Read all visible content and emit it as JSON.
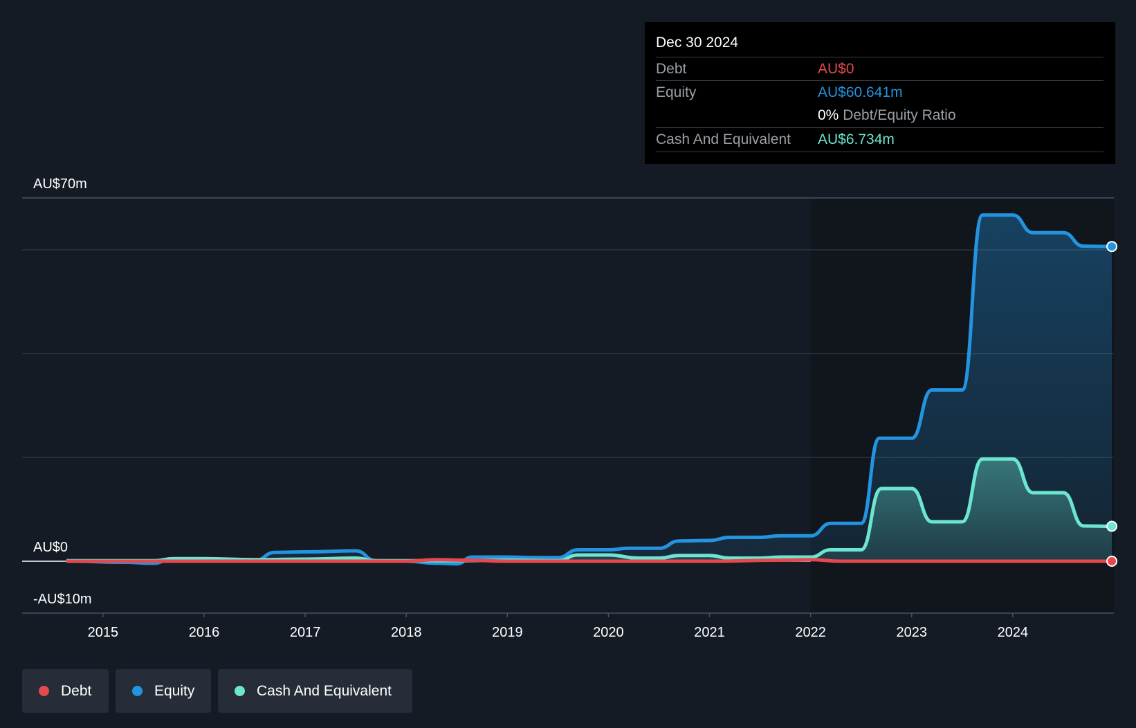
{
  "colors": {
    "background": "#151b24",
    "plot_bg": "#11151c",
    "debt": "#e5484d",
    "equity": "#2394df",
    "cash": "#6ce5d1",
    "grid": "#2e3440",
    "text": "#ffffff",
    "muted": "#9aa0a6"
  },
  "tooltip": {
    "date": "Dec 30 2024",
    "debt_label": "Debt",
    "debt_value": "AU$0",
    "equity_label": "Equity",
    "equity_value": "AU$60.641m",
    "ratio_value": "0%",
    "ratio_label": "Debt/Equity Ratio",
    "cash_label": "Cash And Equivalent",
    "cash_value": "AU$6.734m"
  },
  "legend": [
    {
      "label": "Debt",
      "color_key": "debt"
    },
    {
      "label": "Equity",
      "color_key": "equity"
    },
    {
      "label": "Cash And Equivalent",
      "color_key": "cash"
    }
  ],
  "chart_data": {
    "type": "line",
    "y_unit": "AU$ millions",
    "ylim": [
      -10,
      70
    ],
    "y_tick_labels": [
      {
        "value": 70,
        "label": "AU$70m"
      },
      {
        "value": 0,
        "label": "AU$0"
      },
      {
        "value": -10,
        "label": "-AU$10m"
      }
    ],
    "y_gridlines": [
      70,
      60,
      40,
      20,
      0,
      -10
    ],
    "xlim": [
      2014.2,
      2025.0
    ],
    "x_ticks": [
      {
        "value": 2015,
        "label": "2015"
      },
      {
        "value": 2016,
        "label": "2016"
      },
      {
        "value": 2017,
        "label": "2017"
      },
      {
        "value": 2018,
        "label": "2018"
      },
      {
        "value": 2019,
        "label": "2019"
      },
      {
        "value": 2020,
        "label": "2020"
      },
      {
        "value": 2021,
        "label": "2021"
      },
      {
        "value": 2022,
        "label": "2022"
      },
      {
        "value": 2023,
        "label": "2023"
      },
      {
        "value": 2024,
        "label": "2024"
      }
    ],
    "forecast_start": 2022.0,
    "series": [
      {
        "name": "Equity",
        "color_key": "equity",
        "fill": true,
        "points": [
          [
            2014.65,
            0.0
          ],
          [
            2015.2,
            -0.2
          ],
          [
            2015.5,
            -0.4
          ],
          [
            2015.65,
            0.2
          ],
          [
            2016.0,
            0.3
          ],
          [
            2016.5,
            0.1
          ],
          [
            2016.7,
            1.7
          ],
          [
            2017.0,
            1.8
          ],
          [
            2017.5,
            2.0
          ],
          [
            2017.7,
            0.1
          ],
          [
            2018.0,
            0.0
          ],
          [
            2018.3,
            -0.4
          ],
          [
            2018.5,
            -0.5
          ],
          [
            2018.65,
            0.8
          ],
          [
            2019.0,
            0.8
          ],
          [
            2019.3,
            0.7
          ],
          [
            2019.5,
            0.7
          ],
          [
            2019.7,
            2.2
          ],
          [
            2020.0,
            2.2
          ],
          [
            2020.2,
            2.5
          ],
          [
            2020.5,
            2.5
          ],
          [
            2020.7,
            3.9
          ],
          [
            2021.0,
            4.0
          ],
          [
            2021.2,
            4.6
          ],
          [
            2021.5,
            4.6
          ],
          [
            2021.7,
            4.9
          ],
          [
            2022.0,
            4.9
          ],
          [
            2022.2,
            7.3
          ],
          [
            2022.5,
            7.3
          ],
          [
            2022.68,
            23.7
          ],
          [
            2023.0,
            23.7
          ],
          [
            2023.2,
            33.0
          ],
          [
            2023.5,
            33.0
          ],
          [
            2023.7,
            66.7
          ],
          [
            2024.0,
            66.7
          ],
          [
            2024.2,
            63.3
          ],
          [
            2024.5,
            63.3
          ],
          [
            2024.7,
            60.7
          ],
          [
            2024.98,
            60.641
          ]
        ]
      },
      {
        "name": "Cash And Equivalent",
        "color_key": "cash",
        "fill": true,
        "points": [
          [
            2014.65,
            0.1
          ],
          [
            2015.5,
            0.1
          ],
          [
            2015.7,
            0.5
          ],
          [
            2016.0,
            0.5
          ],
          [
            2016.5,
            0.3
          ],
          [
            2017.0,
            0.4
          ],
          [
            2017.5,
            0.6
          ],
          [
            2017.7,
            0.1
          ],
          [
            2018.5,
            0.1
          ],
          [
            2019.0,
            0.2
          ],
          [
            2019.5,
            0.1
          ],
          [
            2019.7,
            1.2
          ],
          [
            2020.0,
            1.2
          ],
          [
            2020.3,
            0.6
          ],
          [
            2020.5,
            0.6
          ],
          [
            2020.7,
            1.1
          ],
          [
            2021.0,
            1.1
          ],
          [
            2021.2,
            0.6
          ],
          [
            2021.5,
            0.6
          ],
          [
            2021.7,
            0.8
          ],
          [
            2022.0,
            0.8
          ],
          [
            2022.2,
            2.2
          ],
          [
            2022.5,
            2.2
          ],
          [
            2022.7,
            14.0
          ],
          [
            2023.0,
            14.0
          ],
          [
            2023.2,
            7.6
          ],
          [
            2023.5,
            7.6
          ],
          [
            2023.7,
            19.7
          ],
          [
            2024.0,
            19.7
          ],
          [
            2024.2,
            13.2
          ],
          [
            2024.5,
            13.2
          ],
          [
            2024.7,
            6.8
          ],
          [
            2024.98,
            6.734
          ]
        ]
      },
      {
        "name": "Debt",
        "color_key": "debt",
        "fill": false,
        "points": [
          [
            2014.65,
            0.0
          ],
          [
            2017.0,
            0.0
          ],
          [
            2017.7,
            0.0
          ],
          [
            2018.0,
            0.0
          ],
          [
            2018.3,
            0.3
          ],
          [
            2018.6,
            0.2
          ],
          [
            2019.0,
            0.0
          ],
          [
            2020.0,
            0.0
          ],
          [
            2021.0,
            0.0
          ],
          [
            2021.7,
            0.2
          ],
          [
            2022.0,
            0.3
          ],
          [
            2022.3,
            0.0
          ],
          [
            2024.98,
            0.0
          ]
        ]
      }
    ]
  }
}
